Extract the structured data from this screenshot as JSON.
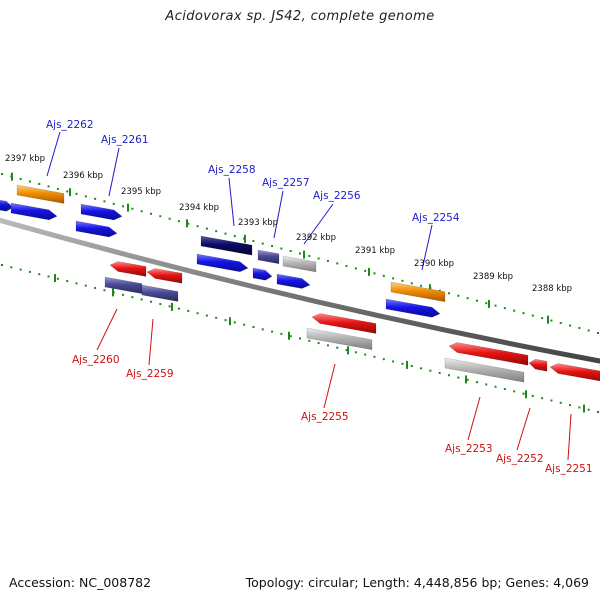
{
  "title": "Acidovorax sp. JS42, complete genome",
  "footer": {
    "accession": "Accession: NC_008782",
    "summary": "Topology: circular; Length: 4,448,856 bp; Genes: 4,069"
  },
  "scale_labels": [
    "2397 kbp",
    "2396 kbp",
    "2395 kbp",
    "2394 kbp",
    "2393 kbp",
    "2392 kbp",
    "2391 kbp",
    "2390 kbp",
    "2389 kbp",
    "2388 kbp"
  ],
  "genes_top": [
    "Ajs_2262",
    "Ajs_2261",
    "Ajs_2258",
    "Ajs_2257",
    "Ajs_2256",
    "Ajs_2254"
  ],
  "genes_bottom": [
    "Ajs_2260",
    "Ajs_2259",
    "Ajs_2255",
    "Ajs_2253",
    "Ajs_2252",
    "Ajs_2251"
  ],
  "colors": {
    "forward": "#1414e6",
    "reverse": "#e61414",
    "orange": "#f08c00",
    "navy": "#0a0a64",
    "slate": "#4a4a96",
    "gray": "#a8a8a8",
    "ticks": "#1a8a1a",
    "backbone": "#777777",
    "label_top": "#1c1ccc",
    "label_bottom": "#cc1010"
  }
}
